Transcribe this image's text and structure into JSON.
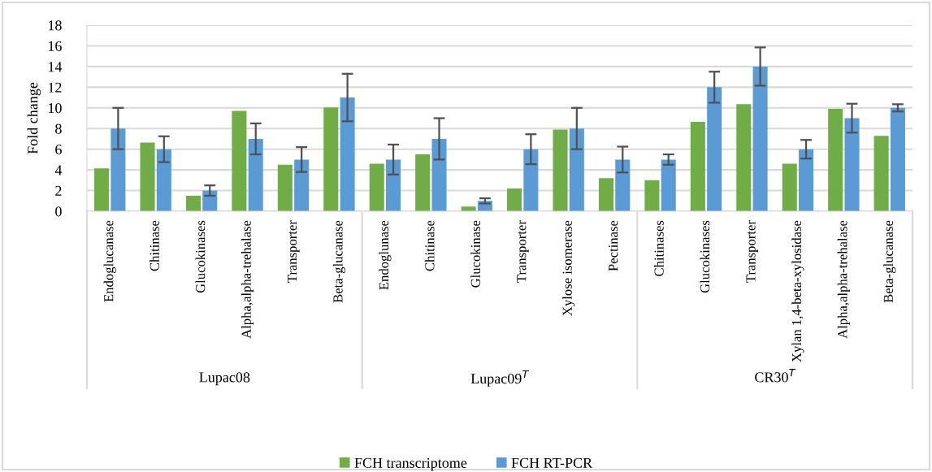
{
  "chart_data": {
    "type": "bar",
    "ylabel": "Fold change",
    "categories": [
      "Endoglucanase",
      "Chitinase",
      "Glucokinases",
      "Alpha,alpha-trehalase",
      "Transporter",
      "Beta-glucanase",
      "Endoglunase",
      "Chitinase",
      "Glucokinase",
      "Transporter",
      "Xylose isomerase",
      "Pectinase",
      "Chitinases",
      "Glucokinases",
      "Transporter",
      "Xylan 1,4-beta-xylosidase",
      "Alpha,alpha-trehalase",
      "Beta-glucanase"
    ],
    "series": [
      {
        "name": "FCH transcriptome",
        "color": "#70ad47",
        "values": [
          4.15,
          6.65,
          1.5,
          9.7,
          4.5,
          10.05,
          4.6,
          5.5,
          0.45,
          2.2,
          7.9,
          3.2,
          3.0,
          8.65,
          10.35,
          4.6,
          9.9,
          7.3
        ]
      },
      {
        "name": "FCH RT-PCR",
        "color": "#5b9bd5",
        "values": [
          8,
          6,
          2,
          7,
          5,
          11,
          5,
          7,
          1,
          6,
          8,
          5,
          5,
          12,
          14,
          6,
          9,
          10
        ],
        "errors": [
          2,
          1.25,
          0.5,
          1.5,
          1.2,
          2.3,
          1.45,
          2,
          0.25,
          1.45,
          2,
          1.25,
          0.5,
          1.5,
          1.85,
          0.9,
          1.4,
          0.35
        ]
      }
    ],
    "ylim": [
      0,
      18
    ],
    "yticks": [
      0,
      2,
      4,
      6,
      8,
      10,
      12,
      14,
      16,
      18
    ],
    "grid": "y",
    "legend": "bottom",
    "annotations": [
      "Lupac08",
      "Lupac09$^{T}$",
      "CR30$^{T}$"
    ]
  }
}
